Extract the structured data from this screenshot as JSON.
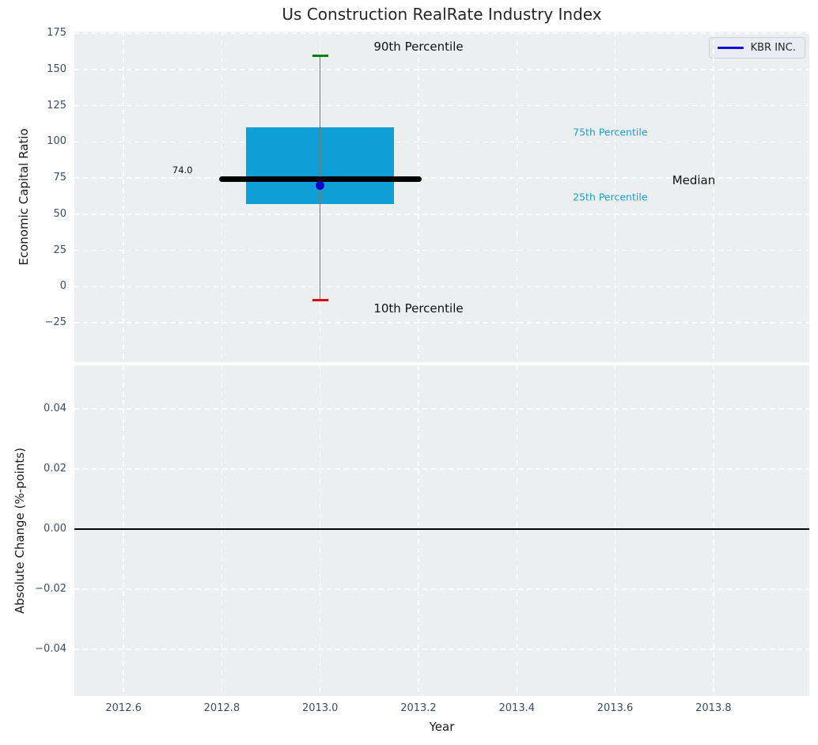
{
  "figure": {
    "title": "Us Construction RealRate Industry Index",
    "background": "#ffffff",
    "axes_background": "#eceff0",
    "grid_color": "#ffffff",
    "tick_label_color": "#3d4c63",
    "text_color": "#1a1a1a"
  },
  "legend": {
    "label": "KBR INC.",
    "line_color": "#0d0de0",
    "position": "upper right"
  },
  "chart_data": [
    {
      "type": "boxplot",
      "title": "Us Construction RealRate Industry Index",
      "ylabel": "Economic Capital Ratio",
      "xlabel": "",
      "grid": true,
      "grid_style": "dashed",
      "xlim": [
        2012.5,
        2013.995
      ],
      "ylim": [
        -52.3,
        176.2
      ],
      "yticks": [
        {
          "v": 175,
          "label": "175"
        },
        {
          "v": 150,
          "label": "150"
        },
        {
          "v": 125,
          "label": "125"
        },
        {
          "v": 100,
          "label": "100"
        },
        {
          "v": 75,
          "label": "75"
        },
        {
          "v": 50,
          "label": "50"
        },
        {
          "v": 25,
          "label": "25"
        },
        {
          "v": 0,
          "label": "0"
        },
        {
          "v": -25,
          "label": "−25"
        }
      ],
      "box": {
        "x": 2013.0,
        "box_half_width": 0.15,
        "median_half_width": 0.206,
        "p90": 159.5,
        "q75": 110,
        "median": 74.0,
        "q25": 57,
        "p10": -9.5,
        "box_color": "#0f9ed5",
        "median_color": "#000000",
        "whisker_color": "#777777",
        "p90_cap_color": "#008000",
        "p10_cap_color": "#e60000"
      },
      "series": [
        {
          "name": "KBR INC.",
          "x": [
            2013.0
          ],
          "y": [
            70
          ],
          "color": "#0000cd",
          "marker": "circle"
        }
      ],
      "annotations": [
        {
          "text": "90th Percentile",
          "x": 2013.2,
          "y": 166,
          "color": "#111111",
          "size": 15
        },
        {
          "text": "10th Percentile",
          "x": 2013.2,
          "y": -15,
          "color": "#111111",
          "size": 15
        },
        {
          "text": "Median",
          "x": 2013.76,
          "y": 73.5,
          "color": "#111111",
          "size": 15
        },
        {
          "text": "75th Percentile",
          "x": 2013.59,
          "y": 107,
          "color": "#1f9dcb",
          "size": 12.5
        },
        {
          "text": "25th Percentile",
          "x": 2013.59,
          "y": 62,
          "color": "#1f9dcb",
          "size": 12.5
        },
        {
          "text": "74.0",
          "x": 2012.72,
          "y": 80.5,
          "color": "#111111",
          "size": 11.5
        }
      ]
    },
    {
      "type": "line",
      "title": "",
      "ylabel": "Absolute Change (%-points)",
      "xlabel": "Year",
      "grid": true,
      "grid_style": "dashed",
      "xlim": [
        2012.5,
        2013.995
      ],
      "ylim": [
        -0.0555,
        0.0545
      ],
      "yticks": [
        {
          "v": 0.04,
          "label": "0.04"
        },
        {
          "v": 0.02,
          "label": "0.02"
        },
        {
          "v": 0.0,
          "label": "0.00"
        },
        {
          "v": -0.02,
          "label": "−0.02"
        },
        {
          "v": -0.04,
          "label": "−0.04"
        }
      ],
      "xticks": [
        {
          "v": 2012.6,
          "label": "2012.6"
        },
        {
          "v": 2012.8,
          "label": "2012.8"
        },
        {
          "v": 2013.0,
          "label": "2013.0"
        },
        {
          "v": 2013.2,
          "label": "2013.2"
        },
        {
          "v": 2013.4,
          "label": "2013.4"
        },
        {
          "v": 2013.6,
          "label": "2013.6"
        },
        {
          "v": 2013.8,
          "label": "2013.8"
        }
      ],
      "zero_line": {
        "y": 0.0,
        "color": "#000000"
      },
      "series": []
    }
  ]
}
